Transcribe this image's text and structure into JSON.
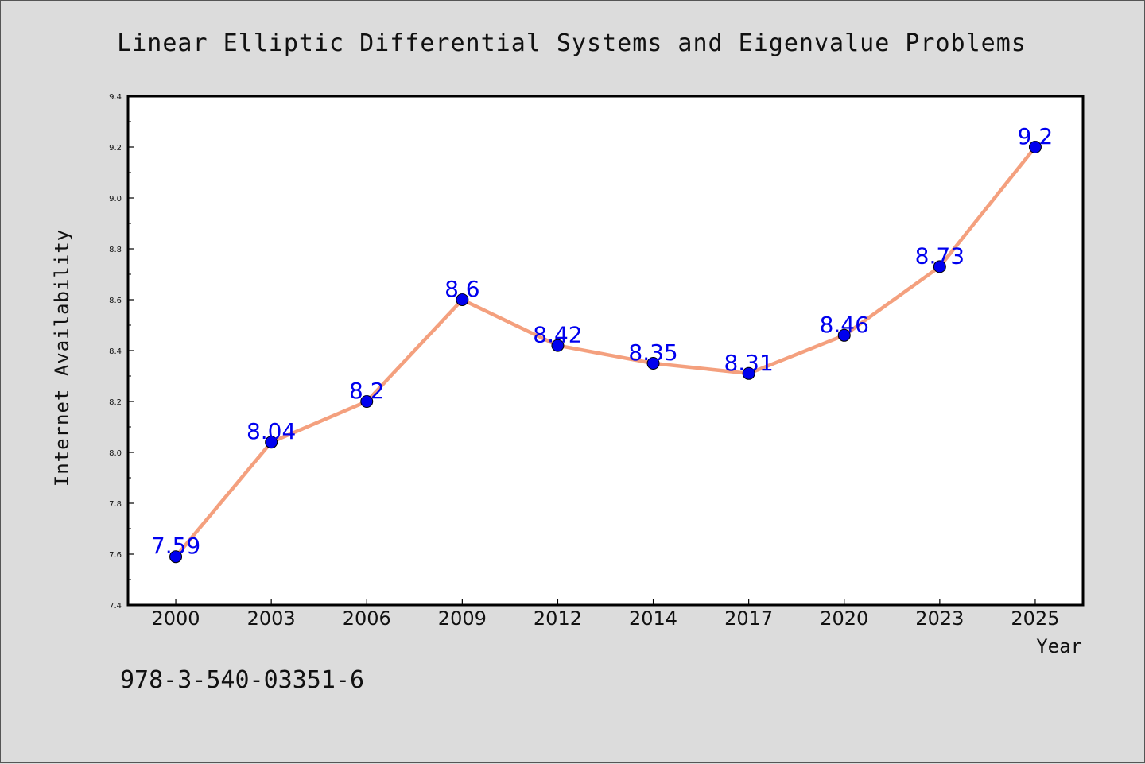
{
  "chart_data": {
    "type": "line",
    "title": "Linear Elliptic Differential Systems and Eigenvalue Problems",
    "xlabel": "Year",
    "ylabel": "Internet Availability",
    "categories": [
      "2000",
      "2003",
      "2006",
      "2009",
      "2012",
      "2014",
      "2017",
      "2020",
      "2023",
      "2025"
    ],
    "series": [
      {
        "values": [
          7.59,
          8.04,
          8.2,
          8.6,
          8.42,
          8.35,
          8.31,
          8.46,
          8.73,
          9.2
        ],
        "data_labels": [
          "7.59",
          "8.04",
          "8.2",
          "8.6",
          "8.42",
          "8.35",
          "8.31",
          "8.46",
          "8.73",
          "9.2"
        ],
        "line_color": "#f4a07e",
        "marker_color": "#0000ee",
        "label_color": "#0000ee"
      }
    ],
    "ylim": [
      7.4,
      9.4
    ],
    "yticks": [
      "7.4",
      "7.6",
      "7.8",
      "8.0",
      "8.2",
      "8.4",
      "8.6",
      "8.8",
      "9.0",
      "9.2",
      "9.4"
    ],
    "grid": false,
    "legend": "none"
  },
  "footer": {
    "isbn": "978-3-540-03351-6"
  },
  "colors": {
    "background": "#dcdcdc",
    "plot_background": "#ffffff",
    "axis": "#000000"
  }
}
